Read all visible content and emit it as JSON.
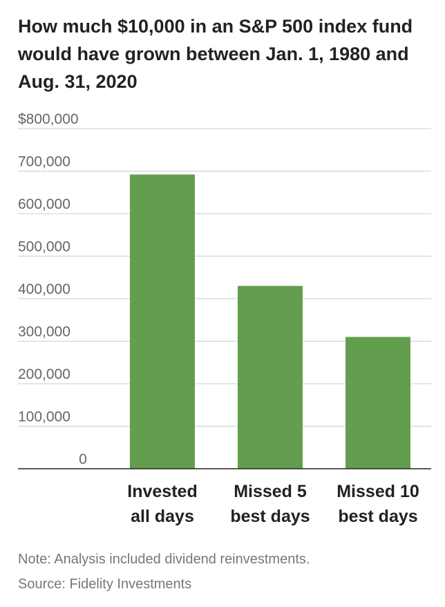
{
  "title": "How much $10,000 in an S&P 500 index fund would have grown between Jan. 1, 1980 and Aug. 31, 2020",
  "note": "Note: Analysis included dividend reinvestments.",
  "source": "Source: Fidelity Investments",
  "colors": {
    "bar": "#629e4e",
    "grid": "#cccccc",
    "baseline": "#222222"
  },
  "chart_data": {
    "type": "bar",
    "title": "How much $10,000 in an S&P 500 index fund would have grown between Jan. 1, 1980 and Aug. 31, 2020",
    "xlabel": "",
    "ylabel": "",
    "categories": [
      [
        "Invested",
        "all days"
      ],
      [
        "Missed 5",
        "best days"
      ],
      [
        "Missed 10",
        "best days"
      ]
    ],
    "values": [
      692000,
      430000,
      310000
    ],
    "ylim": [
      0,
      800000
    ],
    "yticks": [
      0,
      100000,
      200000,
      300000,
      400000,
      500000,
      600000,
      700000,
      800000
    ],
    "ytick_labels": [
      "0",
      "100,000",
      "200,000",
      "300,000",
      "400,000",
      "500,000",
      "600,000",
      "700,000",
      "$800,000"
    ],
    "grid": true,
    "legend": "none"
  }
}
